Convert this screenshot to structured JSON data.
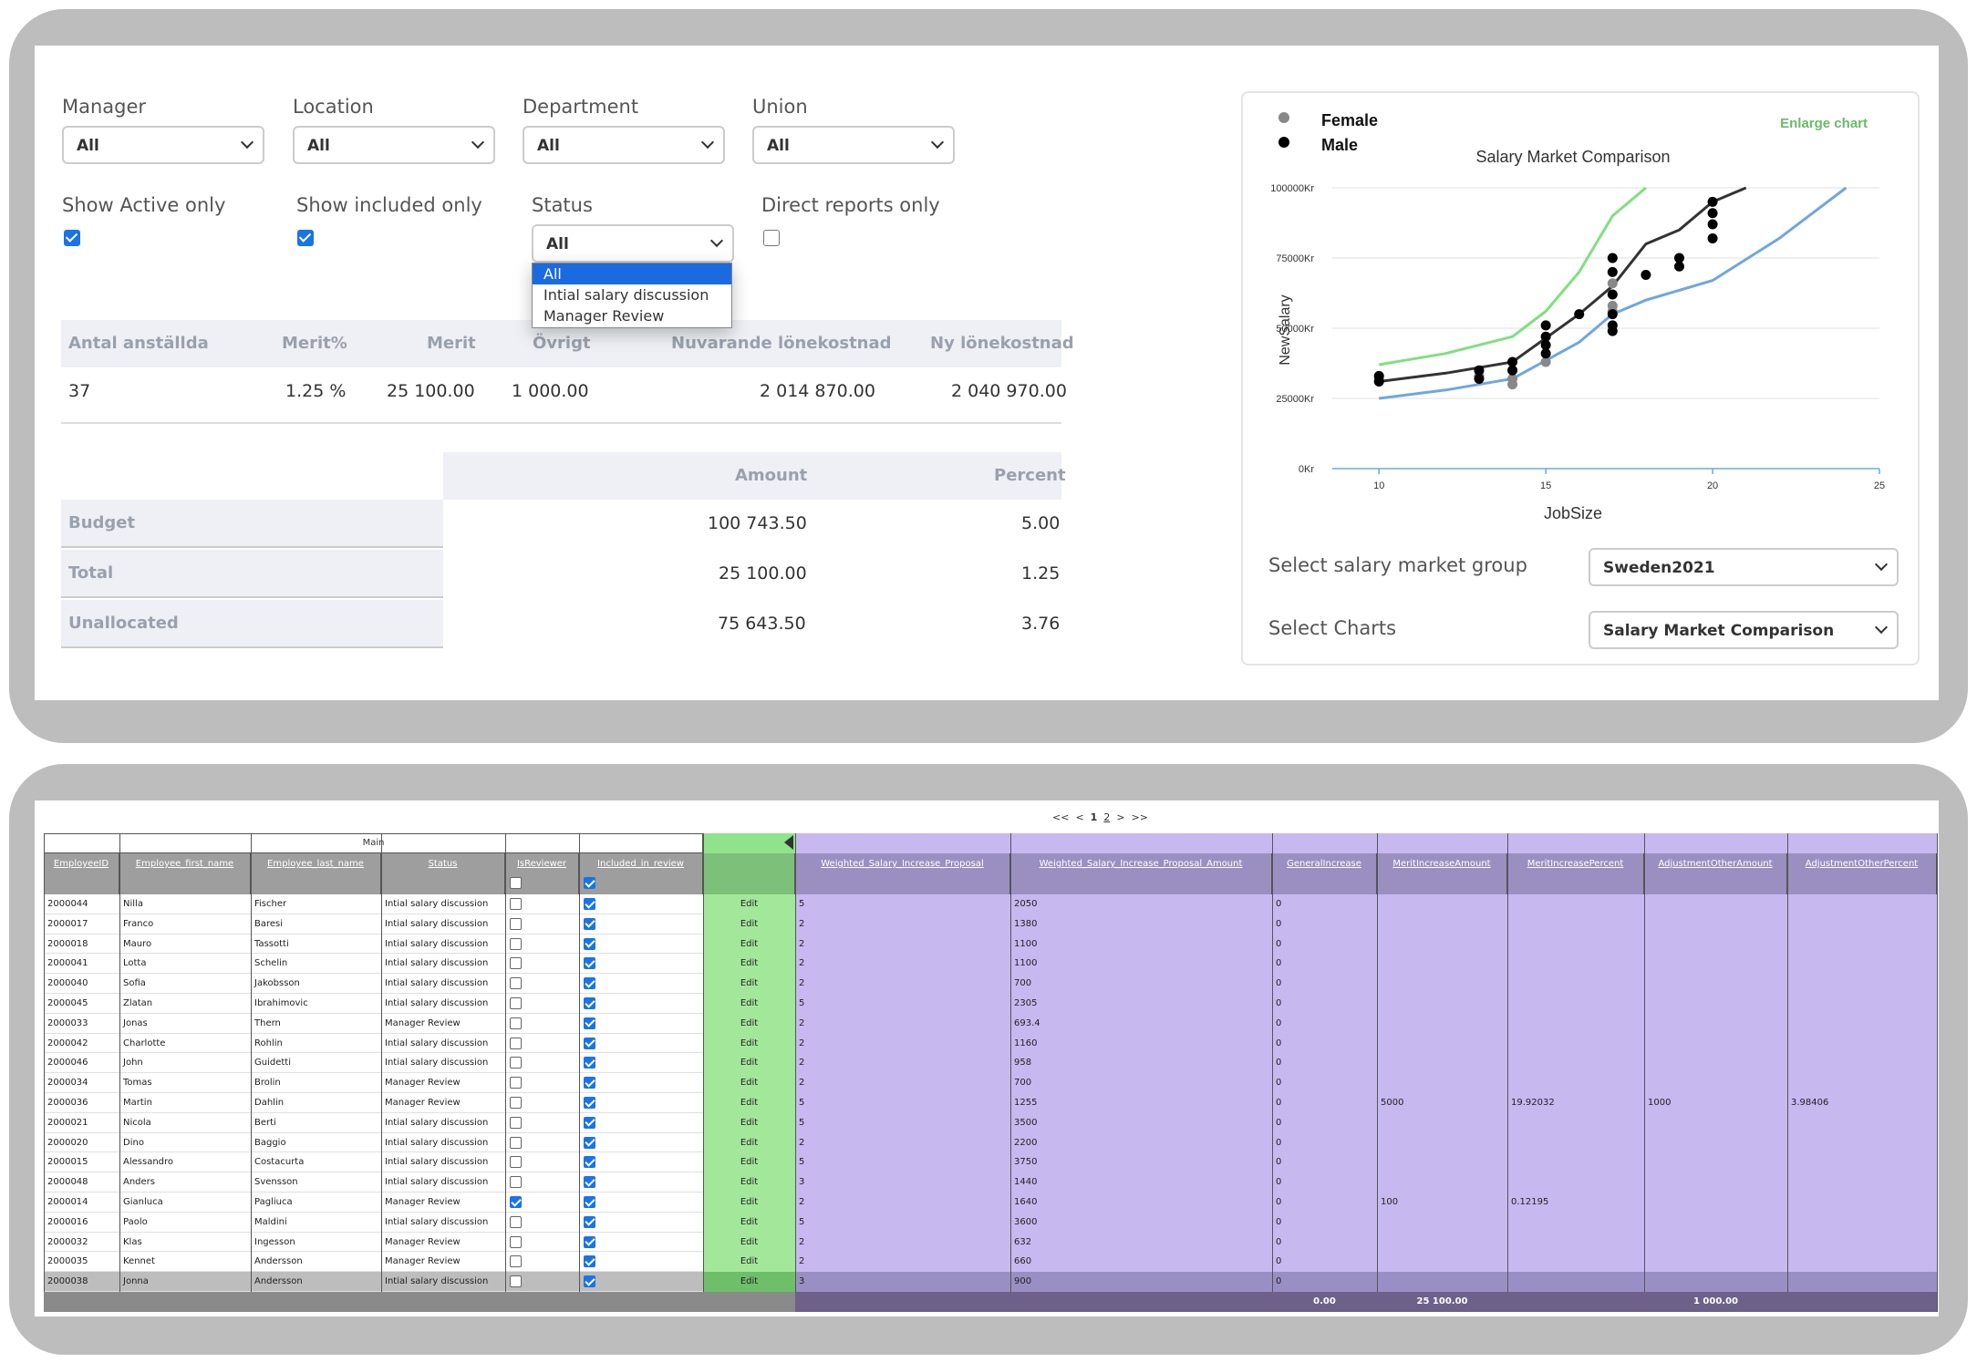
{
  "filters": {
    "manager": {
      "label": "Manager",
      "value": "All"
    },
    "location": {
      "label": "Location",
      "value": "All"
    },
    "department": {
      "label": "Department",
      "value": "All"
    },
    "union": {
      "label": "Union",
      "value": "All"
    },
    "show_active": {
      "label": "Show Active only",
      "checked": true
    },
    "show_included": {
      "label": "Show included only",
      "checked": true
    },
    "status": {
      "label": "Status",
      "value": "All",
      "options": [
        "All",
        "Intial salary discussion",
        "Manager Review"
      ]
    },
    "direct_reports": {
      "label": "Direct reports only",
      "checked": false
    }
  },
  "summary": {
    "headers": [
      "Antal anställda",
      "Merit%",
      "Merit",
      "Övrigt",
      "Nuvarande lönekostnad",
      "Ny lönekostnad"
    ],
    "values": [
      "37",
      "1.25 %",
      "25 100.00",
      "1 000.00",
      "2 014 870.00",
      "2 040 970.00"
    ]
  },
  "budget": {
    "headers": [
      "Amount",
      "Percent"
    ],
    "rows": [
      {
        "label": "Budget",
        "amount": "100 743.50",
        "percent": "5.00"
      },
      {
        "label": "Total",
        "amount": "25 100.00",
        "percent": "1.25"
      },
      {
        "label": "Unallocated",
        "amount": "75 643.50",
        "percent": "3.76"
      }
    ]
  },
  "chart_panel": {
    "enlarge": "Enlarge chart",
    "market_group_label": "Select salary market group",
    "market_group_value": "Sweden2021",
    "charts_label": "Select Charts",
    "charts_value": "Salary Market Comparison"
  },
  "chart_data": {
    "type": "scatter",
    "title": "Salary Market Comparison",
    "xlabel": "JobSize",
    "ylabel": "NewSalary",
    "xlim": [
      8.6,
      25
    ],
    "ylim": [
      0,
      100000
    ],
    "xticks": [
      "10",
      "15",
      "20",
      "25"
    ],
    "yticks": [
      "0Kr",
      "25000Kr",
      "50000Kr",
      "75000Kr",
      "100000Kr"
    ],
    "grid": true,
    "legend_position": "top-left",
    "legend": [
      {
        "name": "Female",
        "color": "#888888"
      },
      {
        "name": "Male",
        "color": "#000000"
      }
    ],
    "series": [
      {
        "color": "#7fe07f",
        "points": [
          [
            10,
            37000
          ],
          [
            12,
            41000
          ],
          [
            14,
            47000
          ],
          [
            15,
            56000
          ],
          [
            16,
            70000
          ],
          [
            17,
            90000
          ],
          [
            18,
            100000
          ]
        ]
      },
      {
        "color": "#333333",
        "points": [
          [
            10,
            31000
          ],
          [
            12,
            34000
          ],
          [
            14,
            38000
          ],
          [
            16,
            55000
          ],
          [
            17,
            65000
          ],
          [
            18,
            80000
          ],
          [
            19,
            85000
          ],
          [
            20,
            95000
          ],
          [
            21,
            100000
          ]
        ]
      },
      {
        "color": "#6ea7e0",
        "points": [
          [
            10,
            25000
          ],
          [
            12,
            28000
          ],
          [
            14,
            32000
          ],
          [
            16,
            45000
          ],
          [
            17,
            55000
          ],
          [
            18,
            60000
          ],
          [
            20,
            67000
          ],
          [
            22,
            82000
          ],
          [
            23,
            91000
          ],
          [
            24,
            100000
          ]
        ]
      }
    ],
    "scatter": [
      {
        "name": "Female",
        "points": [
          [
            10,
            32000
          ],
          [
            13,
            33000
          ],
          [
            14,
            30000
          ],
          [
            14,
            32000
          ],
          [
            15,
            38000
          ],
          [
            17,
            56000
          ],
          [
            17,
            58000
          ],
          [
            17,
            66000
          ]
        ]
      },
      {
        "name": "Male",
        "points": [
          [
            10,
            33000
          ],
          [
            10,
            31000
          ],
          [
            13,
            35000
          ],
          [
            13,
            32000
          ],
          [
            14,
            35000
          ],
          [
            14,
            38000
          ],
          [
            15,
            41000
          ],
          [
            15,
            44000
          ],
          [
            15,
            47000
          ],
          [
            15,
            51000
          ],
          [
            16,
            55000
          ],
          [
            17,
            49000
          ],
          [
            17,
            51000
          ],
          [
            17,
            55000
          ],
          [
            17,
            62000
          ],
          [
            17,
            70000
          ],
          [
            17,
            75000
          ],
          [
            18,
            69000
          ],
          [
            19,
            72000
          ],
          [
            19,
            75000
          ],
          [
            20,
            82000
          ],
          [
            20,
            87000
          ],
          [
            20,
            91000
          ],
          [
            20,
            95000
          ]
        ]
      }
    ]
  },
  "pager": {
    "first": "<<",
    "prev": "<",
    "page1": "1",
    "page2": "2",
    "next": ">",
    "last": ">>"
  },
  "grid": {
    "group_main": "Main",
    "columns": [
      "EmployeeID",
      "Employee_first_name",
      "Employee_last_name",
      "Status",
      "IsReviewer",
      "Included_in_review",
      "",
      "Weighted_Salary_Increase_Proposal",
      "Weighted_Salary_Increase_Proposal_Amount",
      "GeneralIncrease",
      "MeritIncreaseAmount",
      "MeritIncreasePercent",
      "AdjustmentOtherAmount",
      "AdjustmentOtherPercent"
    ],
    "edit_label": "Edit",
    "rows": [
      [
        "2000044",
        "Nilla",
        "Fischer",
        "Intial salary discussion",
        false,
        true,
        "5",
        "2050",
        "0",
        "",
        "",
        "",
        ""
      ],
      [
        "2000017",
        "Franco",
        "Baresi",
        "Intial salary discussion",
        false,
        true,
        "2",
        "1380",
        "0",
        "",
        "",
        "",
        ""
      ],
      [
        "2000018",
        "Mauro",
        "Tassotti",
        "Intial salary discussion",
        false,
        true,
        "2",
        "1100",
        "0",
        "",
        "",
        "",
        ""
      ],
      [
        "2000041",
        "Lotta",
        "Schelin",
        "Intial salary discussion",
        false,
        true,
        "2",
        "1100",
        "0",
        "",
        "",
        "",
        ""
      ],
      [
        "2000040",
        "Sofia",
        "Jakobsson",
        "Intial salary discussion",
        false,
        true,
        "2",
        "700",
        "0",
        "",
        "",
        "",
        ""
      ],
      [
        "2000045",
        "Zlatan",
        "Ibrahimovic",
        "Intial salary discussion",
        false,
        true,
        "5",
        "2305",
        "0",
        "",
        "",
        "",
        ""
      ],
      [
        "2000033",
        "Jonas",
        "Thern",
        "Manager Review",
        false,
        true,
        "2",
        "693.4",
        "0",
        "",
        "",
        "",
        ""
      ],
      [
        "2000042",
        "Charlotte",
        "Rohlin",
        "Intial salary discussion",
        false,
        true,
        "2",
        "1160",
        "0",
        "",
        "",
        "",
        ""
      ],
      [
        "2000046",
        "John",
        "Guidetti",
        "Intial salary discussion",
        false,
        true,
        "2",
        "958",
        "0",
        "",
        "",
        "",
        ""
      ],
      [
        "2000034",
        "Tomas",
        "Brolin",
        "Manager Review",
        false,
        true,
        "2",
        "700",
        "0",
        "",
        "",
        "",
        ""
      ],
      [
        "2000036",
        "Martin",
        "Dahlin",
        "Manager Review",
        false,
        true,
        "5",
        "1255",
        "0",
        "5000",
        "19.92032",
        "1000",
        "3.98406"
      ],
      [
        "2000021",
        "Nicola",
        "Berti",
        "Intial salary discussion",
        false,
        true,
        "5",
        "3500",
        "0",
        "",
        "",
        "",
        ""
      ],
      [
        "2000020",
        "Dino",
        "Baggio",
        "Intial salary discussion",
        false,
        true,
        "2",
        "2200",
        "0",
        "",
        "",
        "",
        ""
      ],
      [
        "2000015",
        "Alessandro",
        "Costacurta",
        "Intial salary discussion",
        false,
        true,
        "5",
        "3750",
        "0",
        "",
        "",
        "",
        ""
      ],
      [
        "2000048",
        "Anders",
        "Svensson",
        "Intial salary discussion",
        false,
        true,
        "3",
        "1440",
        "0",
        "",
        "",
        "",
        ""
      ],
      [
        "2000014",
        "Gianluca",
        "Pagliuca",
        "Manager Review",
        true,
        true,
        "2",
        "1640",
        "0",
        "100",
        "0.12195",
        "",
        ""
      ],
      [
        "2000016",
        "Paolo",
        "Maldini",
        "Intial salary discussion",
        false,
        true,
        "5",
        "3600",
        "0",
        "",
        "",
        "",
        ""
      ],
      [
        "2000032",
        "Klas",
        "Ingesson",
        "Manager Review",
        false,
        true,
        "2",
        "632",
        "0",
        "",
        "",
        "",
        ""
      ],
      [
        "2000035",
        "Kennet",
        "Andersson",
        "Manager Review",
        false,
        true,
        "2",
        "660",
        "0",
        "",
        "",
        "",
        ""
      ],
      [
        "2000038",
        "Jonna",
        "Andersson",
        "Intial salary discussion",
        false,
        true,
        "3",
        "900",
        "0",
        "",
        "",
        "",
        ""
      ]
    ],
    "totals": {
      "GeneralIncrease": "0.00",
      "MeritIncreaseAmount": "25 100.00",
      "AdjustmentOtherAmount": "1 000.00"
    }
  },
  "colors": {
    "frame": "#bdbdbd",
    "edit_col": "#a3e89a",
    "purple": "#c8b8f0",
    "purple_header": "#9b8fc2",
    "grey_header": "#9e9e9e",
    "checkbox": "#1a73e8"
  }
}
